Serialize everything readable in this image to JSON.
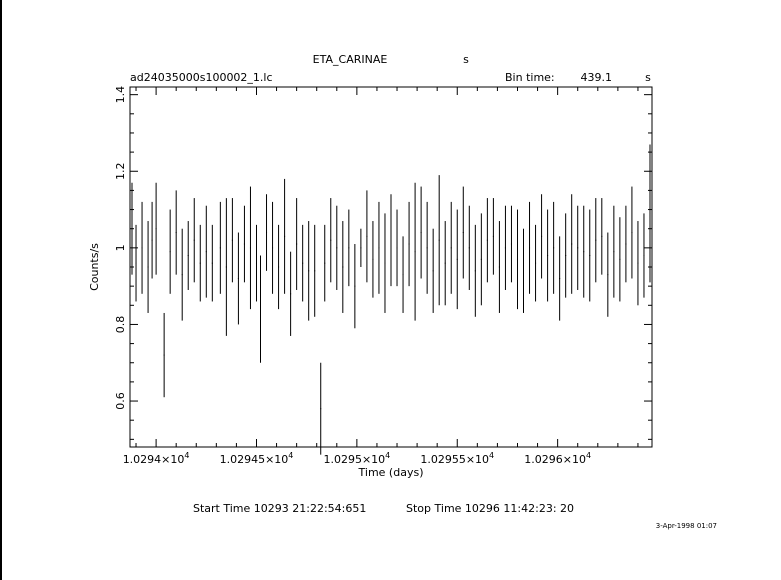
{
  "chart_data": {
    "type": "scatter",
    "title": "ETA_CARINAE",
    "title_unit": "s",
    "file_label": "ad24035000s100002_1.lc",
    "bin_time_label": "Bin time:",
    "bin_time_value": "439.1",
    "bin_time_unit": "s",
    "xlabel": "Time (days)",
    "ylabel": "Counts/s",
    "xlim": [
      10293.87,
      10296.47
    ],
    "ylim": [
      0.48,
      1.42
    ],
    "x_ticks": [
      {
        "value": 10294.0,
        "label": "1.0294×10",
        "exp": "4"
      },
      {
        "value": 10294.5,
        "label": "1.02945×10",
        "exp": "4"
      },
      {
        "value": 10295.0,
        "label": "1.0295×10",
        "exp": "4"
      },
      {
        "value": 10295.5,
        "label": "1.02955×10",
        "exp": "4"
      },
      {
        "value": 10296.0,
        "label": "1.0296×10",
        "exp": "4"
      }
    ],
    "y_ticks": [
      {
        "value": 0.6,
        "label": "0.6"
      },
      {
        "value": 0.8,
        "label": "0.8"
      },
      {
        "value": 1.0,
        "label": "1"
      },
      {
        "value": 1.2,
        "label": "1.2"
      },
      {
        "value": 1.4,
        "label": "1.4"
      }
    ],
    "grid": false,
    "series": [
      {
        "x": [
          10293.88,
          10293.9,
          10293.93,
          10293.96,
          10293.98,
          10294.0,
          10294.04,
          10294.07,
          10294.1,
          10294.13,
          10294.16,
          10294.19,
          10294.22,
          10294.25,
          10294.28,
          10294.32,
          10294.35,
          10294.38,
          10294.41,
          10294.44,
          10294.47,
          10294.5,
          10294.52,
          10294.55,
          10294.58,
          10294.61,
          10294.64,
          10294.67,
          10294.7,
          10294.73,
          10294.76,
          10294.79,
          10294.82,
          10294.84,
          10294.87,
          10294.9,
          10294.93,
          10294.96,
          10294.99,
          10295.02,
          10295.05,
          10295.08,
          10295.11,
          10295.14,
          10295.17,
          10295.2,
          10295.23,
          10295.26,
          10295.29,
          10295.32,
          10295.35,
          10295.38,
          10295.41,
          10295.44,
          10295.47,
          10295.5,
          10295.53,
          10295.56,
          10295.59,
          10295.62,
          10295.65,
          10295.68,
          10295.71,
          10295.74,
          10295.77,
          10295.8,
          10295.83,
          10295.86,
          10295.89,
          10295.92,
          10295.95,
          10295.98,
          10296.01,
          10296.04,
          10296.07,
          10296.1,
          10296.13,
          10296.16,
          10296.19,
          10296.22,
          10296.25,
          10296.28,
          10296.31,
          10296.34,
          10296.37,
          10296.4,
          10296.43,
          10296.46
        ],
        "y": [
          1.05,
          0.96,
          1.0,
          0.95,
          1.02,
          1.05,
          0.72,
          0.99,
          1.04,
          0.93,
          0.98,
          1.02,
          0.96,
          0.99,
          0.96,
          1.0,
          0.95,
          1.02,
          0.92,
          1.01,
          1.0,
          0.96,
          0.84,
          1.04,
          1.0,
          0.95,
          1.03,
          0.88,
          1.01,
          0.96,
          0.94,
          0.94,
          0.58,
          0.96,
          1.02,
          1.0,
          0.95,
          1.0,
          0.9,
          1.0,
          1.03,
          0.97,
          1.0,
          0.96,
          1.02,
          1.0,
          0.93,
          1.01,
          0.99,
          1.04,
          1.0,
          0.94,
          1.02,
          0.96,
          1.0,
          0.97,
          1.04,
          1.0,
          0.94,
          0.97,
          1.02,
          1.03,
          0.95,
          1.0,
          1.01,
          0.97,
          0.94,
          1.0,
          0.96,
          1.03,
          0.98,
          1.0,
          0.92,
          0.98,
          1.01,
          1.0,
          0.99,
          0.98,
          1.02,
          1.03,
          0.93,
          0.99,
          0.97,
          1.01,
          1.04,
          0.96,
          0.98,
          1.09
        ],
        "err": [
          0.12,
          0.1,
          0.12,
          0.12,
          0.1,
          0.12,
          0.11,
          0.11,
          0.11,
          0.12,
          0.09,
          0.11,
          0.1,
          0.12,
          0.1,
          0.12,
          0.18,
          0.11,
          0.12,
          0.1,
          0.16,
          0.1,
          0.14,
          0.1,
          0.12,
          0.11,
          0.15,
          0.11,
          0.12,
          0.1,
          0.13,
          0.12,
          0.12,
          0.1,
          0.11,
          0.11,
          0.12,
          0.1,
          0.11,
          0.05,
          0.12,
          0.1,
          0.12,
          0.13,
          0.12,
          0.1,
          0.1,
          0.11,
          0.18,
          0.12,
          0.12,
          0.11,
          0.17,
          0.11,
          0.12,
          0.13,
          0.12,
          0.11,
          0.12,
          0.12,
          0.11,
          0.1,
          0.12,
          0.11,
          0.1,
          0.13,
          0.11,
          0.12,
          0.1,
          0.11,
          0.12,
          0.12,
          0.11,
          0.11,
          0.13,
          0.11,
          0.12,
          0.12,
          0.11,
          0.1,
          0.11,
          0.12,
          0.11,
          0.1,
          0.12,
          0.11,
          0.11,
          0.18
        ],
        "xerr": 0.0025
      }
    ]
  },
  "footer": {
    "start_time": "Start Time 10293 21:22:54:651",
    "stop_time": "Stop Time 10296 11:42:23: 20",
    "date_stamp": "3-Apr-1998 01:07"
  },
  "colors": {
    "ink": "#000000",
    "background": "#ffffff"
  }
}
